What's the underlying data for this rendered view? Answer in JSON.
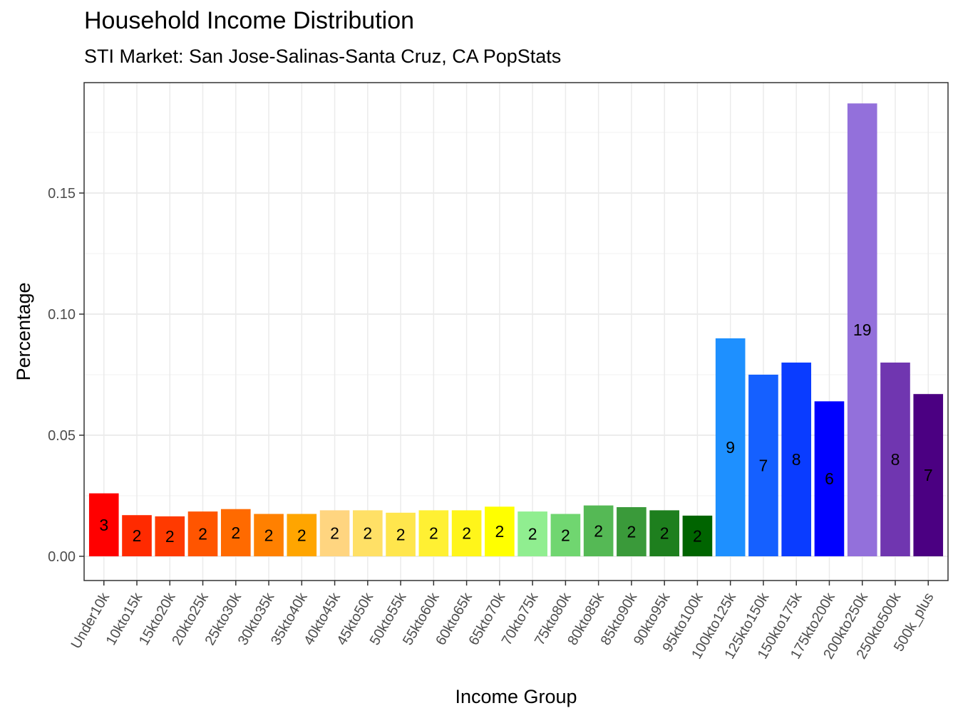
{
  "chart_data": {
    "type": "bar",
    "title": "Household Income Distribution",
    "subtitle": "STI Market: San Jose-Salinas-Santa Cruz, CA PopStats",
    "xlabel": "Income Group",
    "ylabel": "Percentage",
    "ylim": [
      0,
      0.19
    ],
    "yticks": [
      "0.00",
      "0.05",
      "0.10",
      "0.15"
    ],
    "grid": true,
    "categories": [
      "Under10k",
      "10kto15k",
      "15kto20k",
      "20kto25k",
      "25kto30k",
      "30kto35k",
      "35kto40k",
      "40kto45k",
      "45kto50k",
      "50kto55k",
      "55kto60k",
      "60kto65k",
      "65kto70k",
      "70kto75k",
      "75kto80k",
      "80kto85k",
      "85kto90k",
      "90kto95k",
      "95kto100k",
      "100kto125k",
      "125kto150k",
      "150kto175k",
      "175kto200k",
      "200kto250k",
      "250kto500k",
      "500k_plus"
    ],
    "values": [
      0.026,
      0.017,
      0.0165,
      0.0185,
      0.0195,
      0.0175,
      0.0175,
      0.019,
      0.019,
      0.018,
      0.019,
      0.019,
      0.0205,
      0.0185,
      0.0175,
      0.021,
      0.0203,
      0.019,
      0.0168,
      0.09,
      0.075,
      0.08,
      0.064,
      0.187,
      0.08,
      0.067
    ],
    "labels": [
      "3",
      "2",
      "2",
      "2",
      "2",
      "2",
      "2",
      "2",
      "2",
      "2",
      "2",
      "2",
      "2",
      "2",
      "2",
      "2",
      "2",
      "2",
      "2",
      "9",
      "7",
      "8",
      "6",
      "19",
      "8",
      "7"
    ],
    "colors": [
      "#ff0000",
      "#ff2a00",
      "#ff3a00",
      "#ff5500",
      "#ff6a00",
      "#ff8000",
      "#ffa500",
      "#ffd580",
      "#ffe066",
      "#ffe64d",
      "#fff033",
      "#fff51a",
      "#ffff00",
      "#90ee90",
      "#70d670",
      "#55b955",
      "#3a9a3a",
      "#1e7f1e",
      "#006400",
      "#1e90ff",
      "#1560ff",
      "#0a3cff",
      "#0000ff",
      "#9370db",
      "#7036b0",
      "#4b0082"
    ]
  }
}
